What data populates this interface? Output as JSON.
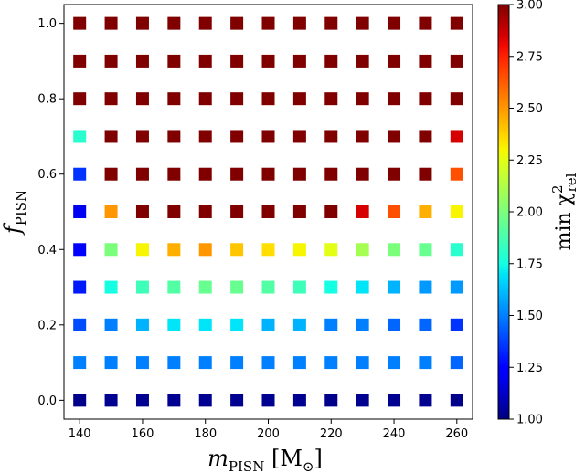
{
  "chart_data": {
    "type": "heatmap",
    "title": "",
    "xlabel": {
      "main": "m",
      "sub": "PISN",
      "unit_open": " [M",
      "unit_sub": "⊙",
      "unit_close": "]"
    },
    "ylabel": {
      "main": "f",
      "sub": "PISN"
    },
    "colorbar_label": {
      "prefix": "min χ",
      "sup": "2",
      "sub": "rel"
    },
    "colormap": "jet",
    "clim": [
      1.0,
      3.0
    ],
    "xlim": [
      135,
      265
    ],
    "ylim": [
      -0.05,
      1.05
    ],
    "x": [
      140,
      150,
      160,
      170,
      180,
      190,
      200,
      210,
      220,
      230,
      240,
      250,
      260
    ],
    "y": [
      0.0,
      0.1,
      0.2,
      0.3,
      0.4,
      0.5,
      0.6,
      0.7,
      0.8,
      0.9,
      1.0
    ],
    "x_ticks": [
      140,
      160,
      180,
      200,
      220,
      240,
      260
    ],
    "x_tick_labels": [
      "140",
      "160",
      "180",
      "200",
      "220",
      "240",
      "260"
    ],
    "y_ticks": [
      0.0,
      0.2,
      0.4,
      0.6,
      0.8,
      1.0
    ],
    "y_tick_labels": [
      "0.0",
      "0.2",
      "0.4",
      "0.6",
      "0.8",
      "1.0"
    ],
    "colorbar_ticks": [
      1.0,
      1.25,
      1.5,
      1.75,
      2.0,
      2.25,
      2.5,
      2.75,
      3.0
    ],
    "colorbar_tick_labels": [
      "1.00",
      "1.25",
      "1.50",
      "1.75",
      "2.00",
      "2.25",
      "2.50",
      "2.75",
      "3.00"
    ],
    "values": [
      [
        1.02,
        1.03,
        1.03,
        1.03,
        1.03,
        1.03,
        1.03,
        1.03,
        1.02,
        1.03,
        1.03,
        1.03,
        1.02
      ],
      [
        1.5,
        1.5,
        1.5,
        1.5,
        1.5,
        1.5,
        1.5,
        1.5,
        1.5,
        1.5,
        1.5,
        1.5,
        1.45
      ],
      [
        1.4,
        1.5,
        1.6,
        1.7,
        1.7,
        1.7,
        1.6,
        1.6,
        1.5,
        1.5,
        1.45,
        1.45,
        1.35
      ],
      [
        1.3,
        1.75,
        1.85,
        1.9,
        1.95,
        1.95,
        1.9,
        1.85,
        1.75,
        1.7,
        1.6,
        1.55,
        1.55
      ],
      [
        1.25,
        2.0,
        2.3,
        2.45,
        2.5,
        2.4,
        2.35,
        2.3,
        2.25,
        2.1,
        2.0,
        1.95,
        1.8
      ],
      [
        1.2,
        2.5,
        3.0,
        3.0,
        3.0,
        3.0,
        3.0,
        3.0,
        3.0,
        2.85,
        2.65,
        2.45,
        2.3
      ],
      [
        1.35,
        3.0,
        3.0,
        3.0,
        3.0,
        3.0,
        3.0,
        3.0,
        3.0,
        3.0,
        3.0,
        3.0,
        2.65
      ],
      [
        1.8,
        3.0,
        3.0,
        3.0,
        3.0,
        3.0,
        3.0,
        3.0,
        3.0,
        3.0,
        3.0,
        3.0,
        2.85
      ],
      [
        3.0,
        3.0,
        3.0,
        3.0,
        3.0,
        3.0,
        3.0,
        3.0,
        3.0,
        3.0,
        3.0,
        3.0,
        3.0
      ],
      [
        3.0,
        3.0,
        3.0,
        3.0,
        3.0,
        3.0,
        3.0,
        3.0,
        3.0,
        3.0,
        3.0,
        3.0,
        3.0
      ],
      [
        3.0,
        3.0,
        3.0,
        3.0,
        3.0,
        3.0,
        3.0,
        3.0,
        3.0,
        3.0,
        3.0,
        3.0,
        3.0
      ]
    ]
  }
}
